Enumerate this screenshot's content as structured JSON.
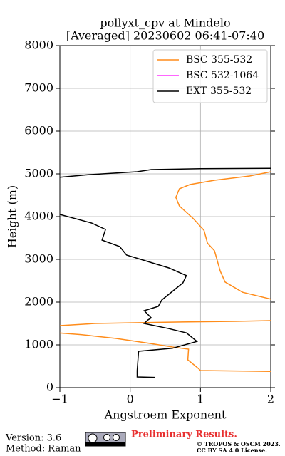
{
  "chart_data": {
    "type": "line",
    "title": [
      "pollyxt_cpv at Mindelo",
      "[Averaged] 20230602 06:41-07:40"
    ],
    "xlabel": "Angstroem Exponent",
    "ylabel": "Height (m)",
    "xlim": [
      -1,
      2
    ],
    "ylim": [
      0,
      8000
    ],
    "xticks": [
      {
        "value": -1,
        "label": "−1"
      },
      0,
      1,
      2
    ],
    "yticks": [
      0,
      1000,
      2000,
      3000,
      4000,
      5000,
      6000,
      7000,
      8000
    ],
    "grid": true,
    "legend": "upper right",
    "series": [
      {
        "name": "BSC 355-532",
        "color": "#ff8c1a",
        "x": [
          2.0,
          1.0,
          0.97,
          0.82,
          0.83,
          0.6,
          0.3,
          -0.2,
          -0.7,
          -1.1,
          null,
          -1.1,
          -1.0,
          -0.5,
          0.5,
          1.5,
          2.1,
          null,
          2.1,
          2.0,
          1.6,
          1.35,
          1.28,
          1.2,
          1.1,
          1.05,
          0.9,
          0.7,
          0.65,
          0.7,
          0.85,
          1.2,
          1.7,
          2.1
        ],
        "y": [
          380,
          400,
          450,
          650,
          900,
          950,
          1030,
          1150,
          1240,
          1290,
          null,
          1440,
          1450,
          1500,
          1530,
          1550,
          1570,
          null,
          2060,
          2070,
          2230,
          2470,
          2730,
          3200,
          3380,
          3680,
          3950,
          4250,
          4450,
          4650,
          4750,
          4850,
          4950,
          5080
        ]
      },
      {
        "name": "BSC 532-1064",
        "color": "#ff33ff",
        "x": [],
        "y": []
      },
      {
        "name": "EXT 355-532",
        "color": "#000000",
        "x": [
          0.35,
          0.1,
          0.1,
          0.12,
          0.6,
          0.95,
          0.8,
          0.55,
          0.2,
          0.25,
          0.3,
          0.2,
          0.4,
          0.45,
          0.6,
          0.75,
          0.8,
          0.55,
          0.25,
          -0.05,
          -0.15,
          -0.4,
          -0.35,
          -0.55,
          -1.0,
          null,
          -1.0,
          -0.6,
          0.1,
          0.3,
          1.0,
          2.0
        ],
        "y": [
          240,
          250,
          400,
          850,
          920,
          1080,
          1280,
          1380,
          1500,
          1580,
          1630,
          1800,
          1900,
          2050,
          2250,
          2450,
          2620,
          2800,
          2950,
          3100,
          3300,
          3450,
          3700,
          3850,
          4050,
          null,
          4920,
          4980,
          5050,
          5100,
          5120,
          5130
        ]
      }
    ]
  },
  "footer": {
    "version": "Version: 3.6",
    "method": "Method: Raman",
    "status": "Preliminary Results.",
    "license": [
      "© TROPOS & OSCM 2023.",
      "CC BY SA 4.0 License."
    ]
  }
}
